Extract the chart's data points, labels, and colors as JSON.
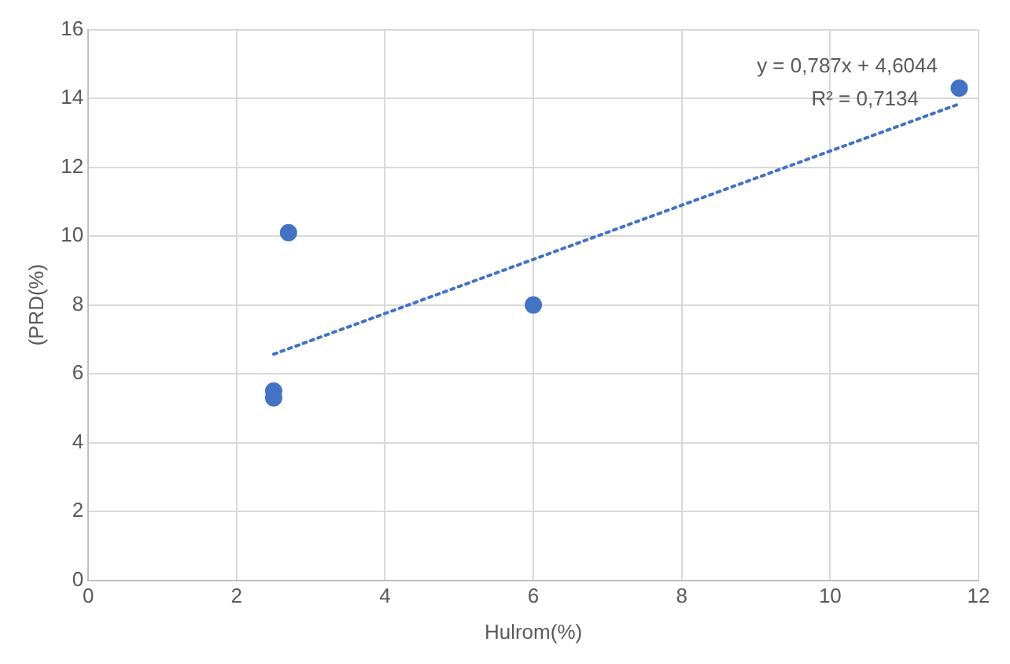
{
  "chart_data": {
    "type": "scatter",
    "xlabel": "Hulrom(%)",
    "ylabel": "(PRD(%)",
    "xlim": [
      0,
      12
    ],
    "xticks": [
      0,
      2,
      4,
      6,
      8,
      10,
      12
    ],
    "ylim": [
      0,
      16
    ],
    "yticks": [
      0,
      2,
      4,
      6,
      8,
      10,
      12,
      14,
      16
    ],
    "grid": true,
    "legend": false,
    "marker": "circle",
    "annotations": [
      "y = 0,787x + 4,6044",
      "R² = 0,7134"
    ],
    "series": [
      {
        "color": "#4472c4",
        "x": [
          2.5,
          2.5,
          2.7,
          6.0,
          11.74
        ],
        "values": [
          5.3,
          5.5,
          10.1,
          8.0,
          14.3
        ]
      },
      {
        "type": "line",
        "line_style": "dotted",
        "marker": "none",
        "color": "#4472c4",
        "x": [
          2.5,
          11.74
        ],
        "values": [
          6.57,
          13.84
        ]
      }
    ]
  }
}
